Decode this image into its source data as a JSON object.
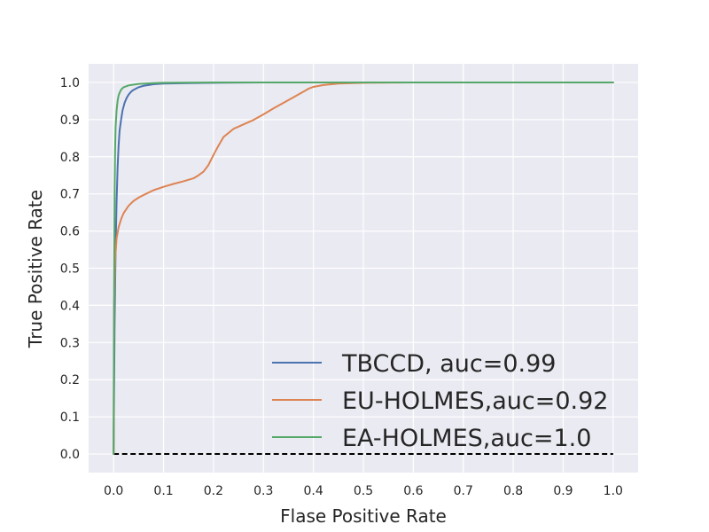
{
  "chart_data": {
    "type": "line",
    "title": "",
    "xlabel": "Flase Positive Rate",
    "ylabel": "True Positive Rate",
    "xlim": [
      -0.05,
      1.05
    ],
    "ylim": [
      -0.05,
      1.05
    ],
    "xticks": [
      0.0,
      0.1,
      0.2,
      0.3,
      0.4,
      0.5,
      0.6,
      0.7,
      0.8,
      0.9,
      1.0
    ],
    "xtick_labels": [
      "0.0",
      "0.1",
      "0.2",
      "0.3",
      "0.4",
      "0.5",
      "0.6",
      "0.7",
      "0.8",
      "0.9",
      "1.0"
    ],
    "yticks": [
      0.0,
      0.1,
      0.2,
      0.3,
      0.4,
      0.5,
      0.6,
      0.7,
      0.8,
      0.9,
      1.0
    ],
    "ytick_labels": [
      "0.0",
      "0.1",
      "0.2",
      "0.3",
      "0.4",
      "0.5",
      "0.6",
      "0.7",
      "0.8",
      "0.9",
      "1.0"
    ],
    "grid": true,
    "legend_position": "lower-right",
    "background_color": "#eaeaf2",
    "series": [
      {
        "name": "TBCCD, auc=0.99",
        "color": "#4c72b0",
        "x": [
          0.0,
          0.002,
          0.004,
          0.006,
          0.008,
          0.01,
          0.012,
          0.015,
          0.018,
          0.022,
          0.026,
          0.03,
          0.035,
          0.04,
          0.05,
          0.06,
          0.08,
          0.1,
          0.15,
          0.2,
          0.3,
          0.5,
          0.7,
          1.0
        ],
        "y": [
          0.0,
          0.35,
          0.55,
          0.68,
          0.77,
          0.83,
          0.87,
          0.9,
          0.925,
          0.945,
          0.958,
          0.967,
          0.975,
          0.98,
          0.987,
          0.991,
          0.995,
          0.997,
          0.998,
          0.999,
          1.0,
          1.0,
          1.0,
          1.0
        ]
      },
      {
        "name": "EU-HOLMES,auc=0.92",
        "color": "#dd8452",
        "x": [
          0.0,
          0.001,
          0.003,
          0.006,
          0.01,
          0.015,
          0.02,
          0.03,
          0.04,
          0.05,
          0.06,
          0.08,
          0.1,
          0.12,
          0.14,
          0.16,
          0.17,
          0.18,
          0.19,
          0.2,
          0.21,
          0.22,
          0.24,
          0.26,
          0.28,
          0.3,
          0.32,
          0.34,
          0.36,
          0.38,
          0.39,
          0.4,
          0.42,
          0.45,
          0.5,
          0.6,
          0.8,
          1.0
        ],
        "y": [
          0.0,
          0.4,
          0.52,
          0.58,
          0.61,
          0.632,
          0.648,
          0.668,
          0.681,
          0.69,
          0.697,
          0.71,
          0.719,
          0.727,
          0.734,
          0.742,
          0.75,
          0.76,
          0.778,
          0.805,
          0.83,
          0.853,
          0.875,
          0.887,
          0.899,
          0.914,
          0.93,
          0.945,
          0.96,
          0.975,
          0.983,
          0.988,
          0.993,
          0.997,
          0.999,
          1.0,
          1.0,
          1.0
        ]
      },
      {
        "name": "EA-HOLMES,auc=1.0",
        "color": "#55a868",
        "x": [
          0.0,
          0.001,
          0.002,
          0.003,
          0.004,
          0.006,
          0.008,
          0.01,
          0.013,
          0.016,
          0.02,
          0.03,
          0.05,
          0.08,
          0.1,
          0.2,
          0.5,
          1.0
        ],
        "y": [
          0.0,
          0.45,
          0.7,
          0.82,
          0.88,
          0.925,
          0.95,
          0.965,
          0.975,
          0.982,
          0.987,
          0.992,
          0.996,
          0.998,
          0.999,
          1.0,
          1.0,
          1.0
        ]
      }
    ],
    "reference_line": {
      "x": [
        0.0,
        1.0
      ],
      "y": [
        0.0,
        0.0
      ],
      "color": "#000000",
      "style": "dashed"
    }
  }
}
